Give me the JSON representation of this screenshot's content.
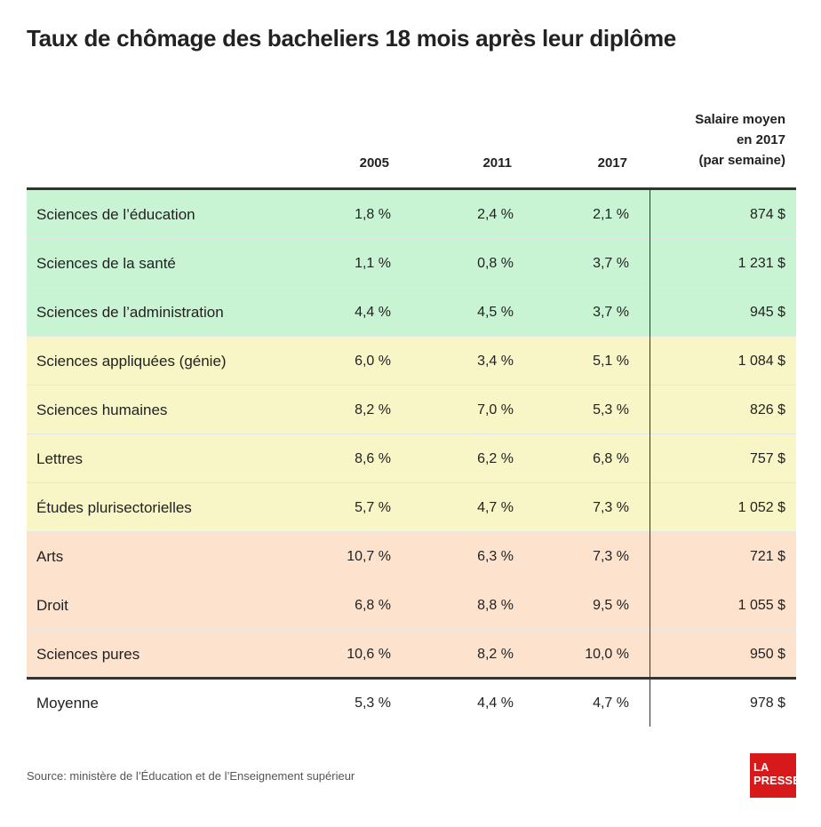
{
  "title": "Taux de chômage des bacheliers 18 mois après leur diplôme",
  "source": "Source: ministère de l’Éducation et de l’Enseignement supérieur",
  "logo": {
    "line1": "LA",
    "line2": "PRESSE"
  },
  "colors": {
    "green": "#c8f4d4",
    "yellow": "#f8f6c6",
    "orange": "#fde2cd",
    "white": "#ffffff",
    "rule": "#333333"
  },
  "chart_data": {
    "type": "table",
    "title": "Taux de chômage des bacheliers 18 mois après leur diplôme",
    "columns": [
      "",
      "2005",
      "2011",
      "2017",
      "Salaire moyen en 2017 (par semaine)"
    ],
    "salary_header_lines": [
      "Salaire moyen",
      "en 2017",
      "(par semaine)"
    ],
    "rows": [
      {
        "name": "Sciences de l’éducation",
        "y2005": "1,8 %",
        "y2011": "2,4 %",
        "y2017": "2,1 %",
        "salary": "874 $",
        "group": "green"
      },
      {
        "name": "Sciences de la santé",
        "y2005": "1,1 %",
        "y2011": "0,8 %",
        "y2017": "3,7 %",
        "salary": "1 231 $",
        "group": "green"
      },
      {
        "name": "Sciences de l’administration",
        "y2005": "4,4 %",
        "y2011": "4,5 %",
        "y2017": "3,7 %",
        "salary": "945 $",
        "group": "green"
      },
      {
        "name": "Sciences appliquées (génie)",
        "y2005": "6,0 %",
        "y2011": "3,4 %",
        "y2017": "5,1 %",
        "salary": "1 084 $",
        "group": "yellow"
      },
      {
        "name": "Sciences humaines",
        "y2005": "8,2 %",
        "y2011": "7,0 %",
        "y2017": "5,3 %",
        "salary": "826 $",
        "group": "yellow"
      },
      {
        "name": "Lettres",
        "y2005": "8,6 %",
        "y2011": "6,2 %",
        "y2017": "6,8 %",
        "salary": "757 $",
        "group": "yellow"
      },
      {
        "name": "Études plurisectorielles",
        "y2005": "5,7 %",
        "y2011": "4,7 %",
        "y2017": "7,3 %",
        "salary": "1 052 $",
        "group": "yellow"
      },
      {
        "name": "Arts",
        "y2005": "10,7 %",
        "y2011": "6,3 %",
        "y2017": "7,3 %",
        "salary": "721 $",
        "group": "orange"
      },
      {
        "name": "Droit",
        "y2005": "6,8 %",
        "y2011": "8,8 %",
        "y2017": "9,5 %",
        "salary": "1 055 $",
        "group": "orange"
      },
      {
        "name": "Sciences pures",
        "y2005": "10,6 %",
        "y2011": "8,2 %",
        "y2017": "10,0 %",
        "salary": "950 $",
        "group": "orange"
      }
    ],
    "average": {
      "name": "Moyenne",
      "y2005": "5,3 %",
      "y2011": "4,4 %",
      "y2017": "4,7 %",
      "salary": "978 $"
    }
  }
}
